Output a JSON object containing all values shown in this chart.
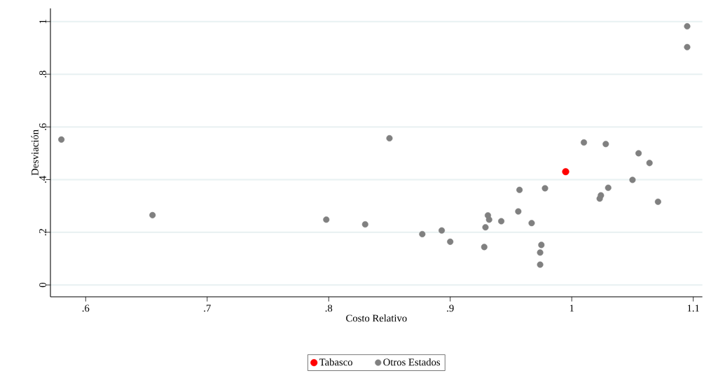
{
  "chart_data": {
    "type": "scatter",
    "xlabel": "Costo Relativo",
    "ylabel": "Desviación",
    "xlim": [
      0.571,
      1.1075
    ],
    "ylim": [
      -0.045,
      1.05
    ],
    "xticks": [
      {
        "value": 0.6,
        "label": ".6"
      },
      {
        "value": 0.7,
        "label": ".7"
      },
      {
        "value": 0.8,
        "label": ".8"
      },
      {
        "value": 0.9,
        "label": ".9"
      },
      1,
      {
        "value": 1.1,
        "label": "1.1"
      }
    ],
    "yticks": [
      0,
      {
        "value": 0.2,
        "label": ".2"
      },
      {
        "value": 0.4,
        "label": ".4"
      },
      {
        "value": 0.6,
        "label": ".6"
      },
      {
        "value": 0.8,
        "label": ".8"
      },
      1
    ],
    "grid": "y",
    "legend": "bottom",
    "series": [
      {
        "name": "Tabasco",
        "color": "#ff0000",
        "x": [
          0.995
        ],
        "values": [
          0.43
        ]
      },
      {
        "name": "Otros Estados",
        "color": "#808080",
        "x": [
          0.58,
          0.655,
          0.798,
          0.83,
          1.095,
          1.095,
          0.85,
          1.01,
          1.028,
          1.055,
          1.064,
          1.05,
          1.03,
          1.024,
          1.023,
          1.071,
          0.957,
          0.978,
          0.956,
          0.931,
          0.932,
          0.942,
          0.929,
          0.967,
          0.877,
          0.893,
          0.9,
          0.928,
          0.975,
          0.974,
          0.974
        ],
        "values": [
          0.552,
          0.265,
          0.248,
          0.23,
          0.982,
          0.903,
          0.557,
          0.541,
          0.535,
          0.5,
          0.463,
          0.399,
          0.369,
          0.34,
          0.328,
          0.316,
          0.361,
          0.367,
          0.279,
          0.264,
          0.248,
          0.242,
          0.219,
          0.235,
          0.193,
          0.207,
          0.164,
          0.144,
          0.152,
          0.123,
          0.077
        ]
      }
    ]
  }
}
